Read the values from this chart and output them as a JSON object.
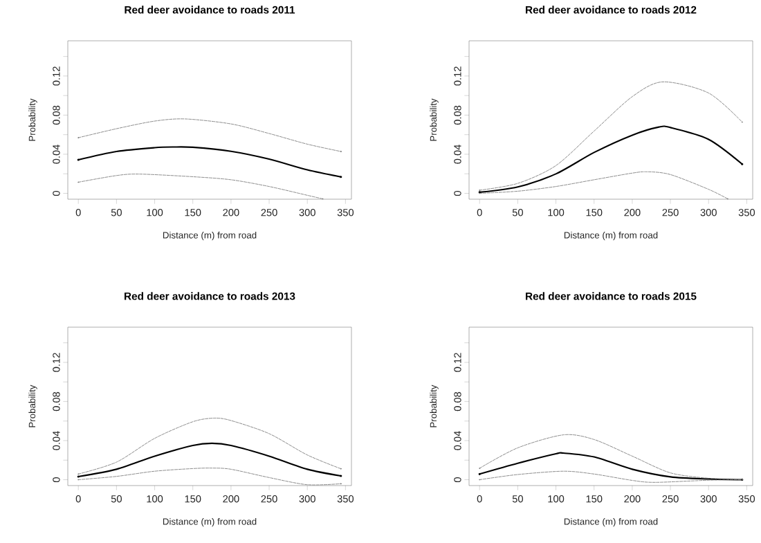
{
  "chart_data": [
    {
      "type": "line",
      "title": "Red deer avoidance to roads 2011",
      "xlabel": "Distance (m) from road",
      "ylabel": "Probability",
      "xlim": [
        -13.8,
        357.8
      ],
      "ylim": [
        -0.006,
        0.156
      ],
      "xticks": [
        0,
        50,
        100,
        150,
        200,
        250,
        300,
        350
      ],
      "yticks": [
        0,
        {
          "value": 0.02,
          "label": null
        },
        0.04,
        {
          "value": 0.06,
          "label": null
        },
        0.08,
        {
          "value": 0.1,
          "label": null
        },
        0.12,
        {
          "value": 0.14,
          "label": null
        }
      ],
      "series": [
        {
          "color": "#808080",
          "line_style": "dashed",
          "x": [
            0,
            50,
            100,
            140,
            200,
            250,
            300,
            344
          ],
          "values": [
            0.0569,
            0.0661,
            0.0739,
            0.0761,
            0.071,
            0.0612,
            0.0503,
            0.0428
          ]
        },
        {
          "color": "#000000",
          "line_style": "solid",
          "x": [
            0,
            50,
            100,
            125,
            150,
            200,
            250,
            300,
            344
          ],
          "values": [
            0.0343,
            0.0428,
            0.0467,
            0.0474,
            0.0471,
            0.043,
            0.035,
            0.024,
            0.0168
          ]
        },
        {
          "color": "#808080",
          "line_style": "dashed",
          "x": [
            0,
            50,
            80,
            150,
            200,
            250,
            300,
            320
          ],
          "values": [
            0.0114,
            0.0182,
            0.0197,
            0.017,
            0.0139,
            0.007,
            -0.002,
            -0.0056
          ]
        }
      ]
    },
    {
      "type": "line",
      "title": "Red deer avoidance to roads 2012",
      "xlabel": "Distance (m) from road",
      "ylabel": "Probability",
      "xlim": [
        -13.8,
        357.8
      ],
      "ylim": [
        -0.006,
        0.156
      ],
      "xticks": [
        0,
        50,
        100,
        150,
        200,
        250,
        300,
        350
      ],
      "yticks": [
        0,
        {
          "value": 0.02,
          "label": null
        },
        0.04,
        {
          "value": 0.06,
          "label": null
        },
        0.08,
        {
          "value": 0.1,
          "label": null
        },
        0.12,
        {
          "value": 0.14,
          "label": null
        }
      ],
      "series": [
        {
          "color": "#808080",
          "line_style": "dashed",
          "x": [
            0,
            50,
            100,
            150,
            200,
            240,
            300,
            344
          ],
          "values": [
            0.0032,
            0.0102,
            0.0284,
            0.0637,
            0.0989,
            0.114,
            0.1026,
            0.0729
          ]
        },
        {
          "color": "#000000",
          "line_style": "solid",
          "x": [
            0,
            50,
            100,
            150,
            200,
            235,
            250,
            300,
            344
          ],
          "values": [
            0.0012,
            0.0066,
            0.0199,
            0.0418,
            0.0595,
            0.0678,
            0.0673,
            0.0552,
            0.0299
          ]
        },
        {
          "color": "#808080",
          "line_style": "dashed",
          "x": [
            0,
            50,
            100,
            150,
            200,
            220,
            250,
            300,
            325
          ],
          "values": [
            0,
            0.0022,
            0.007,
            0.0139,
            0.0207,
            0.0221,
            0.0192,
            0.0041,
            -0.0056
          ]
        }
      ]
    },
    {
      "type": "line",
      "title": "Red deer avoidance to roads 2013",
      "xlabel": "Distance (m) from road",
      "ylabel": "Probability",
      "xlim": [
        -13.8,
        357.8
      ],
      "ylim": [
        -0.006,
        0.156
      ],
      "xticks": [
        0,
        50,
        100,
        150,
        200,
        250,
        300,
        350
      ],
      "yticks": [
        0,
        {
          "value": 0.02,
          "label": null
        },
        0.04,
        {
          "value": 0.06,
          "label": null
        },
        0.08,
        {
          "value": 0.1,
          "label": null
        },
        0.12,
        {
          "value": 0.14,
          "label": null
        }
      ],
      "series": [
        {
          "color": "#808080",
          "line_style": "dashed",
          "x": [
            0,
            50,
            100,
            150,
            178,
            200,
            250,
            300,
            344
          ],
          "values": [
            0.0058,
            0.018,
            0.0423,
            0.0593,
            0.063,
            0.0605,
            0.0471,
            0.0253,
            0.0112
          ]
        },
        {
          "color": "#000000",
          "line_style": "solid",
          "x": [
            0,
            50,
            100,
            150,
            175,
            200,
            250,
            300,
            344
          ],
          "values": [
            0.0032,
            0.0107,
            0.0241,
            0.035,
            0.0372,
            0.035,
            0.0241,
            0.0107,
            0.0039
          ]
        },
        {
          "color": "#808080",
          "line_style": "dashed",
          "x": [
            0,
            50,
            100,
            150,
            175,
            200,
            250,
            300,
            344
          ],
          "values": [
            0,
            0.0034,
            0.0087,
            0.0114,
            0.0119,
            0.0107,
            0.0022,
            -0.0051,
            -0.0041
          ]
        }
      ]
    },
    {
      "type": "line",
      "title": "Red deer avoidance to roads 2015",
      "xlabel": "Distance (m) from road",
      "ylabel": "Probability",
      "xlim": [
        -13.8,
        357.8
      ],
      "ylim": [
        -0.006,
        0.156
      ],
      "xticks": [
        0,
        50,
        100,
        150,
        200,
        250,
        300,
        350
      ],
      "yticks": [
        0,
        {
          "value": 0.02,
          "label": null
        },
        0.04,
        {
          "value": 0.06,
          "label": null
        },
        0.08,
        {
          "value": 0.1,
          "label": null
        },
        0.12,
        {
          "value": 0.14,
          "label": null
        }
      ],
      "series": [
        {
          "color": "#808080",
          "line_style": "dashed",
          "x": [
            0,
            50,
            110,
            150,
            200,
            250,
            300,
            344
          ],
          "values": [
            0.0117,
            0.0326,
            0.0459,
            0.0411,
            0.0241,
            0.007,
            0.0015,
            0
          ]
        },
        {
          "color": "#000000",
          "line_style": "solid",
          "x": [
            0,
            50,
            100,
            110,
            150,
            200,
            250,
            300,
            344
          ],
          "values": [
            0.0058,
            0.0168,
            0.0265,
            0.0272,
            0.0233,
            0.0107,
            0.0029,
            0.0007,
            0
          ]
        },
        {
          "color": "#808080",
          "line_style": "dashed",
          "x": [
            0,
            50,
            110,
            150,
            200,
            230,
            300,
            344
          ],
          "values": [
            0,
            0.0053,
            0.0087,
            0.0058,
            -0.0007,
            -0.0027,
            -0.0005,
            0
          ]
        }
      ]
    }
  ]
}
